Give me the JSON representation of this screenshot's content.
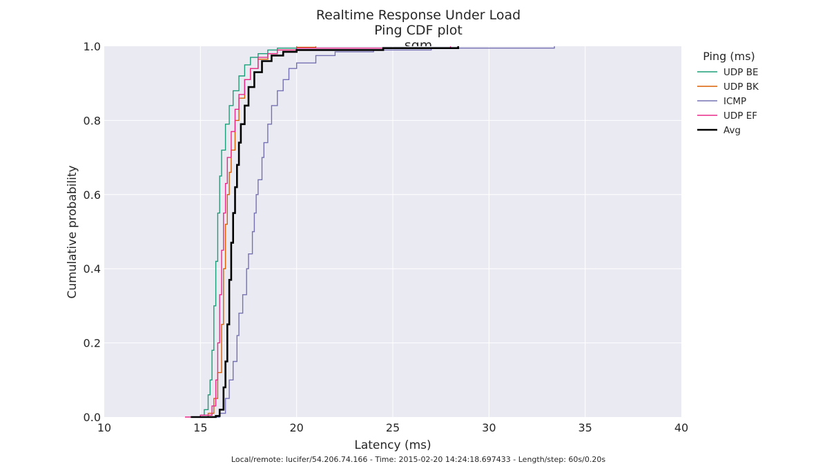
{
  "chart_data": {
    "type": "line",
    "title_lines": [
      "Realtime Response Under Load",
      "Ping CDF plot",
      "sqm"
    ],
    "xlabel": "Latency (ms)",
    "ylabel": "Cumulative probability",
    "xlim": [
      10,
      40
    ],
    "ylim": [
      0,
      1
    ],
    "xticks": [
      "10",
      "15",
      "20",
      "25",
      "30",
      "35",
      "40"
    ],
    "yticks": [
      "0.0",
      "0.2",
      "0.4",
      "0.6",
      "0.8",
      "1.0"
    ],
    "grid": true,
    "legend": {
      "title": "Ping (ms)",
      "placement": "outside-right-top"
    },
    "series": [
      {
        "name": "UDP BE",
        "color": "#1b9e77",
        "width": 1.4,
        "points": [
          [
            14.6,
            0
          ],
          [
            15.0,
            0.005
          ],
          [
            15.2,
            0.02
          ],
          [
            15.4,
            0.06
          ],
          [
            15.5,
            0.1
          ],
          [
            15.6,
            0.18
          ],
          [
            15.7,
            0.3
          ],
          [
            15.8,
            0.42
          ],
          [
            15.9,
            0.55
          ],
          [
            16.0,
            0.65
          ],
          [
            16.1,
            0.72
          ],
          [
            16.3,
            0.79
          ],
          [
            16.5,
            0.84
          ],
          [
            16.7,
            0.88
          ],
          [
            17.0,
            0.92
          ],
          [
            17.3,
            0.95
          ],
          [
            17.6,
            0.97
          ],
          [
            18.0,
            0.98
          ],
          [
            18.5,
            0.99
          ],
          [
            19.0,
            0.995
          ],
          [
            20.0,
            1.0
          ]
        ]
      },
      {
        "name": "UDP BK",
        "color": "#d95f02",
        "width": 1.4,
        "points": [
          [
            14.8,
            0
          ],
          [
            15.4,
            0.01
          ],
          [
            15.7,
            0.05
          ],
          [
            15.9,
            0.12
          ],
          [
            16.1,
            0.25
          ],
          [
            16.2,
            0.4
          ],
          [
            16.3,
            0.52
          ],
          [
            16.4,
            0.6
          ],
          [
            16.5,
            0.66
          ],
          [
            16.6,
            0.72
          ],
          [
            16.8,
            0.8
          ],
          [
            17.0,
            0.86
          ],
          [
            17.3,
            0.91
          ],
          [
            17.6,
            0.94
          ],
          [
            18.0,
            0.965
          ],
          [
            18.5,
            0.98
          ],
          [
            19.0,
            0.99
          ],
          [
            20.0,
            0.997
          ],
          [
            21.0,
            1.0
          ]
        ]
      },
      {
        "name": "ICMP",
        "color": "#7570b3",
        "width": 1.4,
        "points": [
          [
            15.3,
            0
          ],
          [
            16.0,
            0.01
          ],
          [
            16.3,
            0.05
          ],
          [
            16.5,
            0.1
          ],
          [
            16.7,
            0.15
          ],
          [
            16.9,
            0.22
          ],
          [
            17.0,
            0.28
          ],
          [
            17.2,
            0.33
          ],
          [
            17.4,
            0.4
          ],
          [
            17.5,
            0.44
          ],
          [
            17.7,
            0.5
          ],
          [
            17.8,
            0.55
          ],
          [
            17.9,
            0.6
          ],
          [
            18.0,
            0.64
          ],
          [
            18.2,
            0.7
          ],
          [
            18.3,
            0.74
          ],
          [
            18.5,
            0.79
          ],
          [
            18.7,
            0.84
          ],
          [
            19.0,
            0.88
          ],
          [
            19.3,
            0.91
          ],
          [
            19.6,
            0.94
          ],
          [
            20.0,
            0.955
          ],
          [
            21.0,
            0.975
          ],
          [
            22.0,
            0.985
          ],
          [
            24.0,
            0.99
          ],
          [
            27.0,
            0.995
          ],
          [
            33.4,
            1.0
          ]
        ]
      },
      {
        "name": "UDP EF",
        "color": "#e7298a",
        "width": 1.4,
        "points": [
          [
            14.2,
            0
          ],
          [
            15.0,
            0.005
          ],
          [
            15.6,
            0.03
          ],
          [
            15.8,
            0.1
          ],
          [
            15.9,
            0.2
          ],
          [
            16.0,
            0.33
          ],
          [
            16.1,
            0.45
          ],
          [
            16.2,
            0.55
          ],
          [
            16.3,
            0.63
          ],
          [
            16.4,
            0.7
          ],
          [
            16.6,
            0.77
          ],
          [
            16.8,
            0.83
          ],
          [
            17.0,
            0.87
          ],
          [
            17.3,
            0.91
          ],
          [
            17.6,
            0.94
          ],
          [
            18.0,
            0.97
          ],
          [
            18.5,
            0.98
          ],
          [
            19.0,
            0.99
          ],
          [
            20.0,
            0.995
          ],
          [
            28.0,
            1.0
          ]
        ]
      },
      {
        "name": "Avg",
        "color": "#000000",
        "width": 2.6,
        "points": [
          [
            14.5,
            0
          ],
          [
            15.8,
            0.003
          ],
          [
            16.0,
            0.02
          ],
          [
            16.2,
            0.08
          ],
          [
            16.3,
            0.15
          ],
          [
            16.4,
            0.25
          ],
          [
            16.5,
            0.37
          ],
          [
            16.6,
            0.47
          ],
          [
            16.7,
            0.55
          ],
          [
            16.8,
            0.62
          ],
          [
            16.9,
            0.68
          ],
          [
            17.0,
            0.74
          ],
          [
            17.1,
            0.79
          ],
          [
            17.3,
            0.84
          ],
          [
            17.5,
            0.89
          ],
          [
            17.8,
            0.93
          ],
          [
            18.2,
            0.96
          ],
          [
            18.7,
            0.975
          ],
          [
            19.3,
            0.985
          ],
          [
            20.0,
            0.99
          ],
          [
            24.5,
            0.995
          ],
          [
            28.4,
            1.0
          ]
        ]
      }
    ]
  },
  "footer": "Local/remote: lucifer/54.206.74.166 - Time: 2015-02-20 14:24:18.697433 - Length/step: 60s/0.20s"
}
